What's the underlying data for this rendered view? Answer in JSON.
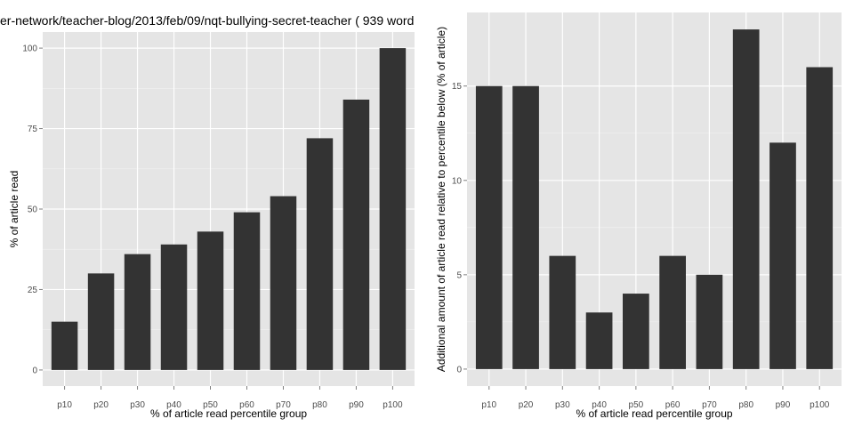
{
  "title": "er-network/teacher-blog/2013/feb/09/nqt-bullying-secret-teacher ( 939 word",
  "colors": {
    "panel": "#e5e5e5",
    "grid_major": "#ffffff",
    "grid_minor": "#f2f2f2",
    "bar": "#333333"
  },
  "chart_data": [
    {
      "type": "bar",
      "categories": [
        "p10",
        "p20",
        "p30",
        "p40",
        "p50",
        "p60",
        "p70",
        "p80",
        "p90",
        "p100"
      ],
      "values": [
        15,
        30,
        36,
        39,
        43,
        49,
        54,
        72,
        84,
        100
      ],
      "xlabel": "% of article read percentile group",
      "ylabel": "% of article read",
      "yticks": [
        0,
        25,
        50,
        75,
        100
      ],
      "ylim": [
        -5,
        105
      ],
      "grid": true
    },
    {
      "type": "bar",
      "categories": [
        "p10",
        "p20",
        "p30",
        "p40",
        "p50",
        "p60",
        "p70",
        "p80",
        "p90",
        "p100"
      ],
      "values": [
        15,
        15,
        6,
        3,
        4,
        6,
        5,
        18,
        12,
        16
      ],
      "xlabel": "% of article read percentile group",
      "ylabel": "Additional amount of article read relative to percentile below (% of article)",
      "yticks": [
        0,
        5,
        10,
        15
      ],
      "ylim": [
        -0.9,
        18.9
      ],
      "grid": true
    }
  ]
}
